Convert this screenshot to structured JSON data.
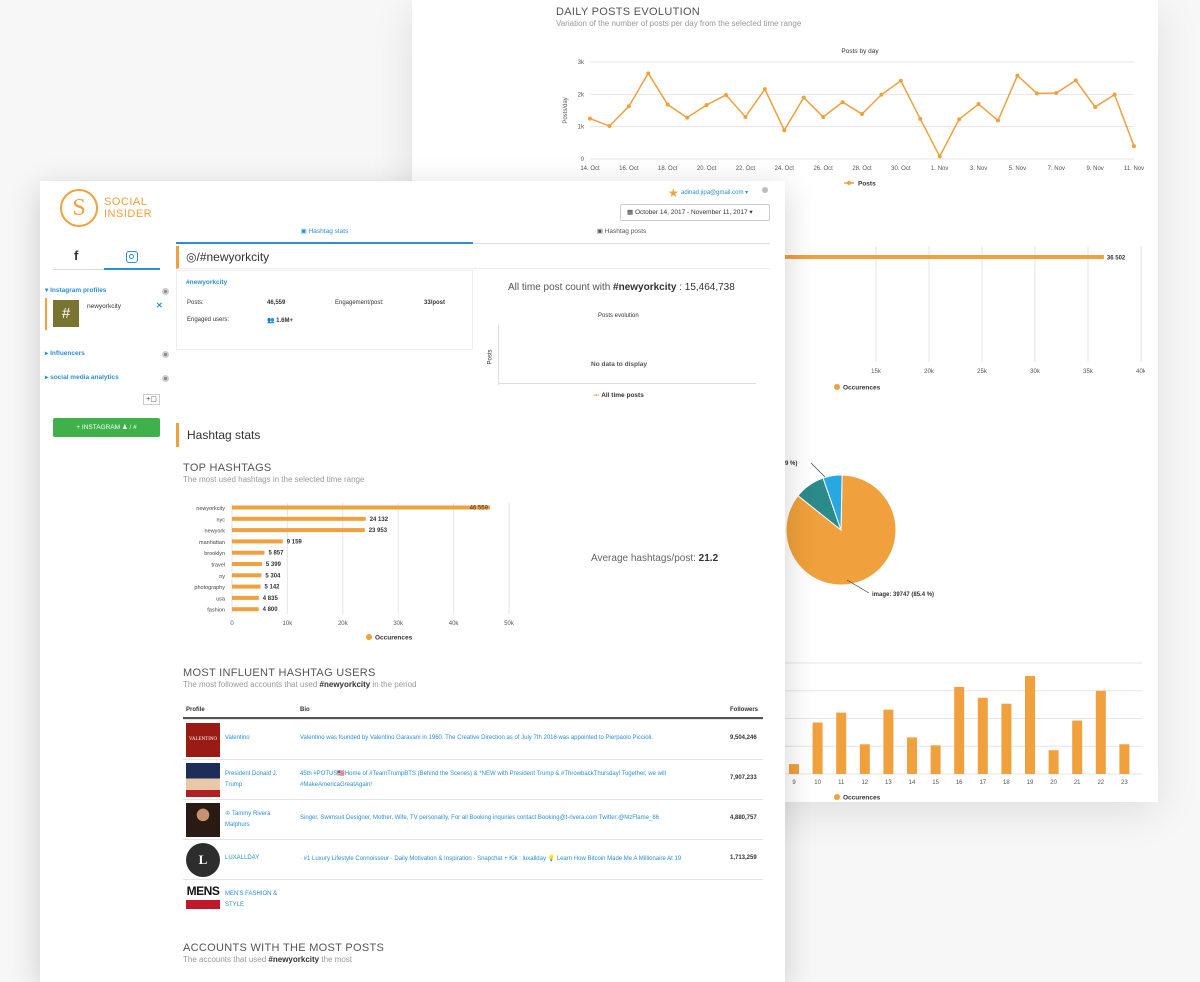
{
  "back": {
    "daily": {
      "title": "DAILY POSTS EVOLUTION",
      "subtitle": "Variation of the number of posts per day from the selected time range"
    }
  },
  "header": {
    "logo_line1": "SOCIAL",
    "logo_line2": "INSIDER",
    "user_email": "adinad.jipa@gmail.com",
    "date_range": "October 14, 2017 - November 11, 2017"
  },
  "tabs": {
    "stats": "Hashtag stats",
    "posts": "Hashtag posts"
  },
  "sidebar": {
    "sections": [
      {
        "label": "Instagram profiles"
      },
      {
        "label": "Influencers"
      },
      {
        "label": "social media analytics"
      }
    ],
    "profile_name": "newyorkcity",
    "add_button": "+ INSTAGRAM ♟ / #"
  },
  "hashtag": {
    "title": "/#newyorkcity",
    "link": "#newyorkcity",
    "posts_label": "Posts:",
    "posts_value": "46,559",
    "engagement_label": "Engagement/post:",
    "engagement_value": "33/post",
    "engaged_label": "Engaged users:",
    "engaged_value": "1.6M+"
  },
  "alltime": {
    "text_prefix": "All time post count with",
    "tag": "#newyorkcity",
    "value": ": 15,464,738",
    "chart_title": "Posts evolution",
    "y_label": "Posts",
    "no_data": "No data to display",
    "legend": "All time posts"
  },
  "stats": {
    "section_title": "Hashtag stats",
    "top_title": "TOP HASHTAGS",
    "top_subtitle": "The most used hashtags in the selected time range",
    "avg_label": "Average hashtags/post:",
    "avg_value": "21.2",
    "influent_title": "MOST INFLUENT HASHTAG USERS",
    "influent_sub_prefix": "The most followed accounts that used",
    "influent_sub_tag": "#newyorkcity",
    "influent_sub_suffix": "in the period",
    "accounts_title": "ACCOUNTS WITH THE MOST POSTS",
    "accounts_sub_prefix": "The accounts that used",
    "accounts_sub_tag": "#newyorkcity",
    "accounts_sub_suffix": "the most"
  },
  "table": {
    "headers": [
      "Profile",
      "Bio",
      "Followers"
    ],
    "rows": [
      {
        "name": "Valentino",
        "bio": "Valentino was founded by Valentino Garavani in 1960. The Creative Direction as of July 7th 2016 was appointed to Pierpaolo Piccioli.",
        "followers": "9,504,246",
        "avatar": "VALENTINO"
      },
      {
        "name": "President Donald J. Trump",
        "bio": "45th #POTUS🇺🇸Home of #TeamTrumpBTS (Behind the Scenes) & *NEW with President Trump & #ThrowbackThursday! Together, we will #MakeAmericaGreatAgain!",
        "followers": "7,907,233",
        "avatar": ""
      },
      {
        "name": "♔ Tammy Rivera Malphurs",
        "bio": "Singer, Swimsuit Designer, Mother, Wife, TV personality, For all Booking inquiries contact:Booking@t-rivera.com Twitter:@MzFlame_86",
        "followers": "4,880,757",
        "avatar": ""
      },
      {
        "name": "LUXALLDAY",
        "bio": "· #1 Luxury Lifestyle Connoisseur · Daily Motivation & Inspiration · Snapchat + Kik : luxallday 💡 Learn How Bitcoin Made Me A Millionaire At 19",
        "followers": "1,713,259",
        "avatar": "L"
      },
      {
        "name": "MEN'S FASHION & STYLE",
        "bio": "",
        "followers": "",
        "avatar": "MENS"
      }
    ]
  },
  "colors": {
    "accent": "#f0a03c",
    "link": "#2b8fd6",
    "green": "#3fb04a",
    "cyan": "#29a8e0",
    "teal": "#2b8a8a"
  },
  "chart_data": [
    {
      "type": "line",
      "title": "Posts by day",
      "ylabel": "Posts/day",
      "legend": "Posts",
      "y_ticks": [
        "0",
        "1k",
        "2k",
        "3k"
      ],
      "x_ticks": [
        "14. Oct",
        "16. Oct",
        "18. Oct",
        "20. Oct",
        "22. Oct",
        "24. Oct",
        "26. Oct",
        "28. Oct",
        "30. Oct",
        "1. Nov",
        "3. Nov",
        "5. Nov",
        "7. Nov",
        "9. Nov",
        "11. Nov"
      ],
      "ylim": [
        0,
        3000
      ],
      "values": [
        1250,
        1020,
        1630,
        2650,
        1680,
        1280,
        1670,
        1980,
        1300,
        2160,
        890,
        1900,
        1300,
        1760,
        1390,
        1990,
        2420,
        1240,
        80,
        1230,
        1700,
        1190,
        2580,
        2030,
        2040,
        2430,
        1610,
        1990,
        400
      ]
    },
    {
      "type": "bar",
      "orientation": "horizontal",
      "legend": "Occurences",
      "bar_value_label": "36 502",
      "values": [
        36502
      ],
      "xlim": [
        10000,
        40000
      ],
      "x_ticks": [
        "15k",
        "20k",
        "25k",
        "30k",
        "35k",
        "40k"
      ]
    },
    {
      "type": "pie",
      "slices": [
        {
          "label": "image: 39747 (85.4 %)",
          "value": 85.4,
          "color": "#f0a03c"
        },
        {
          "label": "9 %)",
          "value": 9.0,
          "color": "#2b8a8a"
        },
        {
          "label": "",
          "value": 5.6,
          "color": "#29a8e0"
        }
      ]
    },
    {
      "type": "bar",
      "legend": "Occurences",
      "categories": [
        "9",
        "10",
        "11",
        "12",
        "13",
        "14",
        "15",
        "16",
        "17",
        "18",
        "19",
        "20",
        "21",
        "22",
        "23"
      ],
      "values": [
        10,
        52,
        62,
        30,
        65,
        37,
        29,
        88,
        77,
        71,
        99,
        24,
        54,
        84,
        30
      ]
    },
    {
      "type": "bar",
      "orientation": "horizontal",
      "legend": "Occurences",
      "categories": [
        "newyorkcity",
        "nyc",
        "newyork",
        "manhattan",
        "brooklyn",
        "travel",
        "ny",
        "photography",
        "usa",
        "fashion"
      ],
      "values": [
        46559,
        24132,
        23953,
        9159,
        5857,
        5399,
        5304,
        5142,
        4835,
        4800
      ],
      "value_labels": [
        "46 559",
        "24 132",
        "23 953",
        "9 159",
        "5 857",
        "5 399",
        "5 304",
        "5 142",
        "4 835",
        "4 800"
      ],
      "xlim": [
        0,
        50000
      ],
      "x_ticks": [
        "0",
        "10k",
        "20k",
        "30k",
        "40k",
        "50k"
      ]
    }
  ]
}
